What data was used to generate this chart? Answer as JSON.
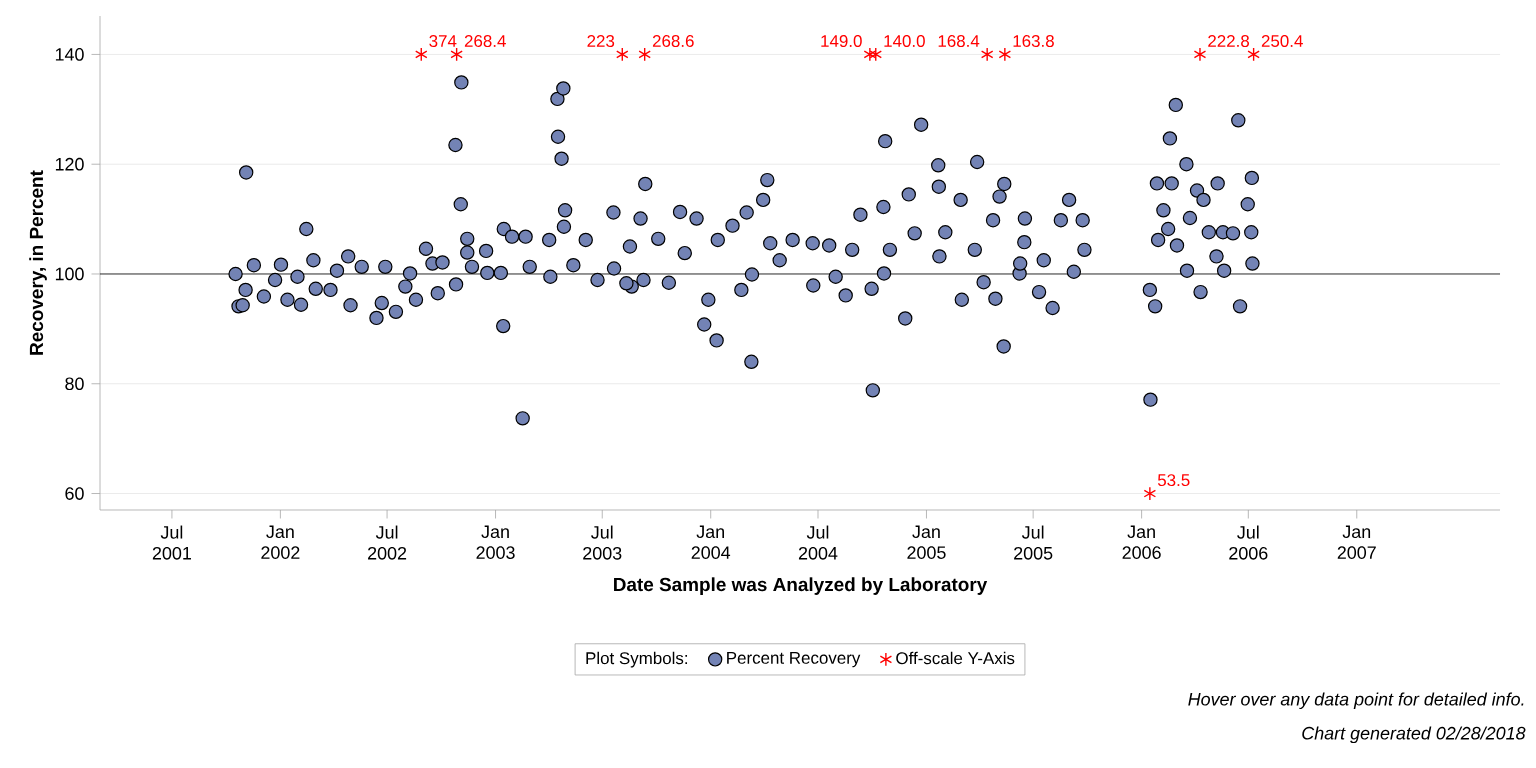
{
  "chart_data": {
    "type": "scatter",
    "xlabel": "Date Sample was Analyzed by Laboratory",
    "ylabel": "Recovery, in Percent",
    "legend_title": "Plot Symbols:",
    "legend": "bottom",
    "grid": "y",
    "xlim": [
      "2001-03-01",
      "2007-09-01"
    ],
    "ylim": [
      57,
      147
    ],
    "yticks": [
      60,
      80,
      100,
      120,
      140
    ],
    "xticks": [
      {
        "value": "2001-07-01",
        "label": "Jul 2001"
      },
      {
        "value": "2002-01-01",
        "label": "Jan 2002"
      },
      {
        "value": "2002-07-01",
        "label": "Jul 2002"
      },
      {
        "value": "2003-01-01",
        "label": "Jan 2003"
      },
      {
        "value": "2003-07-01",
        "label": "Jul 2003"
      },
      {
        "value": "2004-01-01",
        "label": "Jan 2004"
      },
      {
        "value": "2004-07-01",
        "label": "Jul 2004"
      },
      {
        "value": "2005-01-01",
        "label": "Jan 2005"
      },
      {
        "value": "2005-07-01",
        "label": "Jul 2005"
      },
      {
        "value": "2006-01-01",
        "label": "Jan 2006"
      },
      {
        "value": "2006-07-01",
        "label": "Jul 2006"
      },
      {
        "value": "2007-01-01",
        "label": "Jan 2007"
      }
    ],
    "ref_lines": [
      {
        "axis": "y",
        "value": 100,
        "color": "#000000"
      }
    ],
    "series": [
      {
        "name": "Percent Recovery",
        "color": "#7383b5",
        "marker": "circle",
        "x": [
          "2001-10-17",
          "2001-10-22",
          "2001-10-29",
          "2001-11-04",
          "2001-11-03",
          "2001-11-17",
          "2001-12-04",
          "2001-12-23",
          "2002-01-02",
          "2002-01-13",
          "2002-01-30",
          "2002-02-05",
          "2002-02-14",
          "2002-02-26",
          "2002-03-02",
          "2002-03-27",
          "2002-04-07",
          "2002-04-26",
          "2002-04-30",
          "2002-05-19",
          "2002-06-13",
          "2002-06-22",
          "2002-06-28",
          "2002-07-16",
          "2002-08-01",
          "2002-08-09",
          "2002-08-19",
          "2002-09-05",
          "2002-09-16",
          "2002-09-25",
          "2002-10-03",
          "2002-10-25",
          "2002-11-04",
          "2002-11-03",
          "2002-10-26",
          "2002-11-14",
          "2002-11-14",
          "2002-11-22",
          "2002-12-16",
          "2002-12-18",
          "2003-01-10",
          "2003-01-14",
          "2003-01-15",
          "2003-01-29",
          "2003-02-16",
          "2003-02-21",
          "2003-02-28",
          "2003-04-02",
          "2003-04-04",
          "2003-04-16",
          "2003-04-26",
          "2003-04-17",
          "2003-04-23",
          "2003-04-29",
          "2003-04-27",
          "2003-05-13",
          "2003-06-03",
          "2003-06-23",
          "2003-07-20",
          "2003-07-21",
          "2003-08-17",
          "2003-08-20",
          "2003-08-11",
          "2003-09-04",
          "2003-09-12",
          "2003-09-09",
          "2003-10-04",
          "2003-10-22",
          "2003-11-10",
          "2003-11-18",
          "2003-12-08",
          "2003-12-21",
          "2003-12-28",
          "2004-01-11",
          "2004-01-13",
          "2004-02-07",
          "2004-02-22",
          "2004-03-02",
          "2004-03-10",
          "2004-03-11",
          "2004-03-30",
          "2004-04-06",
          "2004-04-11",
          "2004-04-27",
          "2004-05-19",
          "2004-06-22",
          "2004-06-23",
          "2004-07-20",
          "2004-07-31",
          "2004-08-17",
          "2004-08-28",
          "2004-09-11",
          "2004-09-30",
          "2004-10-02",
          "2004-10-21",
          "2004-10-23",
          "2004-10-20",
          "2004-10-31",
          "2004-11-26",
          "2004-12-02",
          "2004-12-12",
          "2004-12-23",
          "2005-01-21",
          "2005-01-22",
          "2005-01-23",
          "2005-02-02",
          "2005-03-02",
          "2005-02-28",
          "2005-03-28",
          "2005-03-24",
          "2005-04-08",
          "2005-04-24",
          "2005-04-28",
          "2005-05-05",
          "2005-05-13",
          "2005-05-12",
          "2005-06-08",
          "2005-06-17",
          "2005-06-09",
          "2005-06-16",
          "2005-07-11",
          "2005-07-19",
          "2005-08-03",
          "2005-08-17",
          "2005-08-31",
          "2005-09-08",
          "2005-09-23",
          "2005-09-26",
          "2006-01-15",
          "2006-01-24",
          "2006-01-16",
          "2006-01-27",
          "2006-01-29",
          "2006-02-07",
          "2006-02-18",
          "2006-02-28",
          "2006-02-21",
          "2006-02-15",
          "2006-03-02",
          "2006-03-18",
          "2006-03-24",
          "2006-04-05",
          "2006-03-19",
          "2006-04-11",
          "2006-04-16",
          "2006-04-25",
          "2006-05-10",
          "2006-05-19",
          "2006-05-08",
          "2006-05-21",
          "2006-06-14",
          "2006-06-17",
          "2006-06-05",
          "2006-06-30",
          "2006-07-07",
          "2006-07-06",
          "2006-07-08"
        ],
        "values": [
          100,
          94.1,
          94.3,
          118.5,
          97.1,
          101.6,
          95.9,
          98.9,
          101.7,
          95.3,
          99.5,
          94.4,
          108.2,
          102.5,
          97.3,
          97.1,
          100.6,
          103.2,
          94.3,
          101.3,
          92,
          94.7,
          101.3,
          93.1,
          97.7,
          100.1,
          95.3,
          104.6,
          101.9,
          96.5,
          102.1,
          123.5,
          134.9,
          112.7,
          98.1,
          106.4,
          103.9,
          101.3,
          104.2,
          100.2,
          100.2,
          90.5,
          108.2,
          106.8,
          73.7,
          106.8,
          101.3,
          106.2,
          99.5,
          131.9,
          133.8,
          125,
          121,
          111.6,
          108.6,
          101.6,
          106.2,
          98.9,
          111.2,
          101,
          105,
          97.7,
          98.3,
          110.1,
          116.4,
          98.9,
          106.4,
          98.4,
          111.3,
          103.8,
          110.1,
          90.8,
          95.3,
          87.9,
          106.2,
          108.8,
          97.1,
          111.2,
          84,
          99.9,
          113.5,
          117.1,
          105.6,
          102.5,
          106.2,
          105.6,
          97.9,
          105.2,
          99.5,
          96.1,
          104.4,
          110.8,
          97.3,
          78.8,
          100.1,
          124.2,
          112.2,
          104.4,
          91.9,
          114.5,
          107.4,
          127.2,
          119.8,
          115.9,
          103.2,
          107.6,
          95.3,
          113.5,
          120.4,
          104.4,
          98.5,
          109.8,
          95.5,
          114.1,
          116.4,
          86.8,
          100.1,
          110.1,
          101.9,
          105.8,
          96.7,
          102.5,
          93.8,
          109.8,
          113.5,
          100.4,
          109.8,
          104.4,
          97.1,
          94.1,
          77.1,
          116.5,
          106.2,
          111.6,
          124.7,
          130.8,
          116.5,
          108.2,
          105.2,
          120,
          110.2,
          115.2,
          100.6,
          96.7,
          113.5,
          107.6,
          116.5,
          107.6,
          103.2,
          100.6,
          128,
          94.1,
          107.4,
          112.7,
          117.5,
          107.6,
          101.9
        ]
      },
      {
        "name": "Off-scale Y-Axis",
        "color": "#ff0000",
        "marker": "cross",
        "x": [
          "2002-08-28",
          "2002-10-27",
          "2003-08-04",
          "2003-09-11",
          "2004-09-27",
          "2004-10-07",
          "2005-04-14",
          "2005-05-14",
          "2006-04-10",
          "2006-07-10",
          "2006-01-15"
        ],
        "values": [
          140,
          140,
          140,
          140,
          140,
          140,
          140,
          140,
          140,
          140,
          60
        ]
      }
    ],
    "annotations": [
      {
        "text": "374",
        "x": "2002-08-28",
        "y": 140
      },
      {
        "text": "268.4",
        "x": "2002-10-27",
        "y": 140
      },
      {
        "text": "223",
        "x": "2003-08-04",
        "y": 140
      },
      {
        "text": "268.6",
        "x": "2003-09-11",
        "y": 140
      },
      {
        "text": "149.0",
        "x": "2004-09-27",
        "y": 140
      },
      {
        "text": "140.0",
        "x": "2004-10-07",
        "y": 140
      },
      {
        "text": "168.4",
        "x": "2005-04-14",
        "y": 140
      },
      {
        "text": "163.8",
        "x": "2005-05-14",
        "y": 140
      },
      {
        "text": "222.8",
        "x": "2006-04-10",
        "y": 140
      },
      {
        "text": "250.4",
        "x": "2006-07-10",
        "y": 140
      },
      {
        "text": "53.5",
        "x": "2006-01-15",
        "y": 60
      },
      "Hover over any data point for detailed info.",
      "Chart generated 02/28/2018"
    ]
  }
}
